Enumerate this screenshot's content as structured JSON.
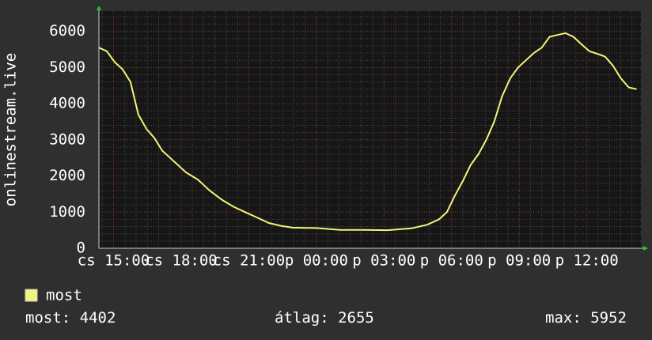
{
  "chart_data": {
    "type": "line",
    "ylabel": "onlinestream.live",
    "x": [
      14.35,
      14.7,
      15.05,
      15.4,
      15.75,
      16.1,
      16.46,
      16.81,
      17.16,
      17.51,
      17.86,
      18.21,
      18.74,
      19.26,
      19.79,
      20.32,
      20.84,
      21.37,
      21.89,
      22.42,
      22.95,
      24.0,
      25.05,
      26.1,
      27.16,
      28.21,
      28.91,
      29.44,
      29.79,
      30.14,
      30.49,
      30.84,
      31.19,
      31.54,
      31.89,
      32.24,
      32.6,
      32.95,
      33.3,
      33.65,
      34.0,
      34.35,
      34.7,
      35.05,
      35.4,
      35.75,
      36.11,
      36.46,
      36.81,
      37.16,
      37.51,
      37.86,
      38.21
    ],
    "series": [
      {
        "name": "most",
        "color": "#f4f47a",
        "values": [
          5550,
          5450,
          5150,
          4950,
          4600,
          3700,
          3300,
          3050,
          2700,
          2500,
          2300,
          2100,
          1900,
          1600,
          1350,
          1150,
          1000,
          850,
          700,
          620,
          570,
          560,
          510,
          510,
          500,
          550,
          650,
          800,
          1000,
          1450,
          1850,
          2300,
          2600,
          3000,
          3500,
          4200,
          4700,
          5000,
          5200,
          5400,
          5550,
          5850,
          5900,
          5950,
          5850,
          5650,
          5450,
          5380,
          5300,
          5050,
          4700,
          4450,
          4400
        ]
      }
    ],
    "xlim": [
      14.35,
      38.4
    ],
    "xticks": [
      {
        "value": 15,
        "label": "cs 15:00"
      },
      {
        "value": 18,
        "label": "cs 18:00"
      },
      {
        "value": 21,
        "label": "cs 21:00"
      },
      {
        "value": 24,
        "label": "p 00:00"
      },
      {
        "value": 27,
        "label": "p 03:00"
      },
      {
        "value": 30,
        "label": "p 06:00"
      },
      {
        "value": 33,
        "label": "p 09:00"
      },
      {
        "value": 36,
        "label": "p 12:00"
      }
    ],
    "ylim": [
      0,
      6560
    ],
    "yticks": [
      0,
      1000,
      2000,
      3000,
      4000,
      5000,
      6000
    ],
    "grid": true,
    "stats": [
      {
        "label": "most:",
        "value": 4402
      },
      {
        "label": "átlag:",
        "value": 2655
      },
      {
        "label": "max:",
        "value": 5952
      }
    ]
  }
}
